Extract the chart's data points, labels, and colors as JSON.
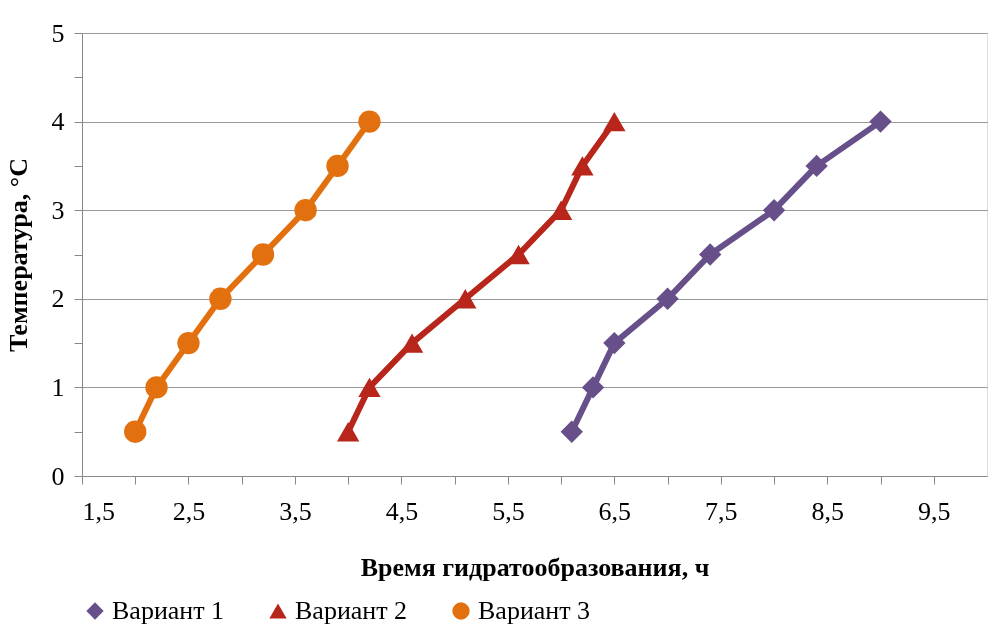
{
  "chart_data": {
    "type": "line",
    "xlabel": "Время гидратообразования, ч",
    "ylabel": "Температура, °C",
    "xlim": [
      1.5,
      10
    ],
    "xticks": [
      {
        "value": 1.5,
        "label": "1,5"
      },
      {
        "value": 2,
        "label": null
      },
      {
        "value": 2.5,
        "label": "2,5"
      },
      {
        "value": 3,
        "label": null
      },
      {
        "value": 3.5,
        "label": "3,5"
      },
      {
        "value": 4,
        "label": null
      },
      {
        "value": 4.5,
        "label": "4,5"
      },
      {
        "value": 5,
        "label": null
      },
      {
        "value": 5.5,
        "label": "5,5"
      },
      {
        "value": 6,
        "label": null
      },
      {
        "value": 6.5,
        "label": "6,5"
      },
      {
        "value": 7,
        "label": null
      },
      {
        "value": 7.5,
        "label": "7,5"
      },
      {
        "value": 8,
        "label": null
      },
      {
        "value": 8.5,
        "label": "8,5"
      },
      {
        "value": 9,
        "label": null
      },
      {
        "value": 9.5,
        "label": "9,5"
      }
    ],
    "ylim": [
      0,
      5
    ],
    "yticks": [
      0,
      {
        "value": 0.5,
        "label": null
      },
      1,
      {
        "value": 1.5,
        "label": null
      },
      2,
      {
        "value": 2.5,
        "label": null
      },
      3,
      {
        "value": 3.5,
        "label": null
      },
      4,
      {
        "value": 4.5,
        "label": null
      },
      5
    ],
    "grid": "y",
    "legend": "bottom",
    "line_style": "solid",
    "series": [
      {
        "name": "Вариант 1",
        "color": "#67508a",
        "marker": "diamond",
        "x": [
          6.1,
          6.3,
          6.5,
          7.0,
          7.4,
          8.0,
          8.4,
          9.0
        ],
        "values": [
          0.5,
          1,
          1.5,
          2,
          2.5,
          3,
          3.5,
          4
        ]
      },
      {
        "name": "Вариант 2",
        "color": "#b8251a",
        "marker": "triangle",
        "x": [
          4.0,
          4.2,
          4.6,
          5.1,
          5.6,
          6.0,
          6.2,
          6.5
        ],
        "values": [
          0.5,
          1,
          1.5,
          2,
          2.5,
          3,
          3.5,
          4
        ]
      },
      {
        "name": "Вариант 3",
        "color": "#e3700f",
        "marker": "circle",
        "x": [
          2.0,
          2.2,
          2.5,
          2.8,
          3.2,
          3.6,
          3.9,
          4.2
        ],
        "values": [
          0.5,
          1,
          1.5,
          2,
          2.5,
          3,
          3.5,
          4
        ]
      }
    ]
  }
}
